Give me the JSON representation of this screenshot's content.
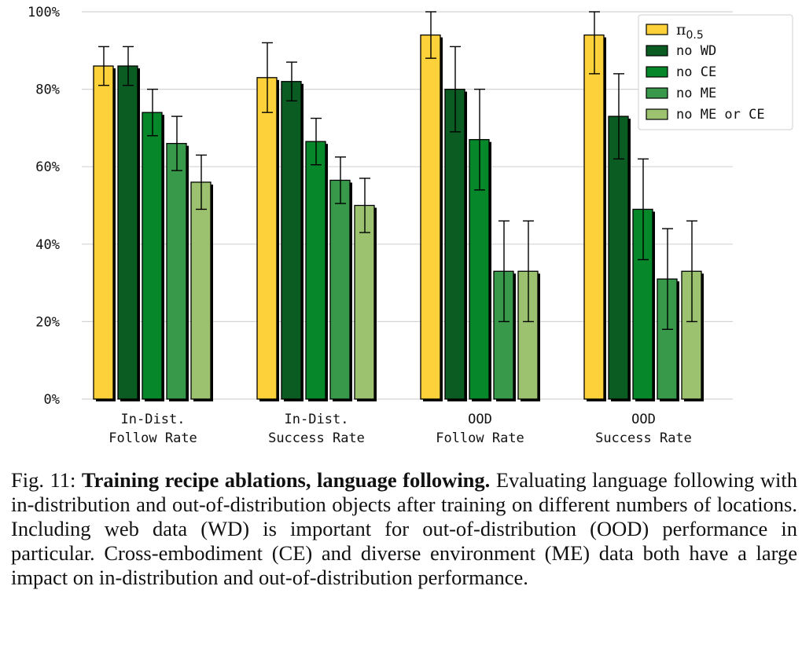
{
  "chart_data": {
    "type": "bar",
    "categories": [
      [
        "In-Dist.",
        "Follow Rate"
      ],
      [
        "In-Dist.",
        "Success Rate"
      ],
      [
        "OOD",
        "Follow Rate"
      ],
      [
        "OOD",
        "Success Rate"
      ]
    ],
    "series": [
      {
        "name": "π0.5",
        "color": "#fdd13a",
        "values": [
          86,
          83,
          94,
          94
        ],
        "err_low": [
          81,
          74,
          88,
          84
        ],
        "err_high": [
          91,
          92,
          100,
          100
        ]
      },
      {
        "name": "no WD",
        "color": "#0b5c22",
        "values": [
          86,
          82,
          80,
          73
        ],
        "err_low": [
          81,
          77,
          69,
          62
        ],
        "err_high": [
          91,
          87,
          91,
          84
        ]
      },
      {
        "name": "no CE",
        "color": "#06872a",
        "values": [
          74,
          66.5,
          67,
          49
        ],
        "err_low": [
          68,
          60.5,
          54,
          36
        ],
        "err_high": [
          80,
          72.5,
          80,
          62
        ]
      },
      {
        "name": "no ME",
        "color": "#38994a",
        "values": [
          66,
          56.5,
          33,
          31
        ],
        "err_low": [
          59,
          50.5,
          20,
          18
        ],
        "err_high": [
          73,
          62.5,
          46,
          44
        ]
      },
      {
        "name": "no ME or CE",
        "color": "#9cc270",
        "values": [
          56,
          50,
          33,
          33
        ],
        "err_low": [
          49,
          43,
          20,
          20
        ],
        "err_high": [
          63,
          57,
          46,
          46
        ]
      }
    ],
    "y_ticks": [
      "0%",
      "20%",
      "40%",
      "60%",
      "80%",
      "100%"
    ],
    "y_tick_values": [
      0,
      20,
      40,
      60,
      80,
      100
    ],
    "ylim": [
      0,
      100
    ],
    "grid": "horizontal",
    "legend_position": "top-right",
    "title": "",
    "xlabel": "",
    "ylabel": ""
  },
  "legend": {
    "pi_symbol": "π",
    "pi_subscript": "0.5"
  },
  "caption": {
    "prefix": "Fig. 11: ",
    "bold": "Training recipe ablations, language following.",
    "text": " Evaluating language following with in-distribution and out-of-distribution objects after training on different numbers of locations. Including web data (WD) is important for out-of-distribution (OOD) performance in particular. Cross-embodiment (CE) and diverse environment (ME) data both have a large impact on in-distribution and out-of-distribution performance."
  }
}
